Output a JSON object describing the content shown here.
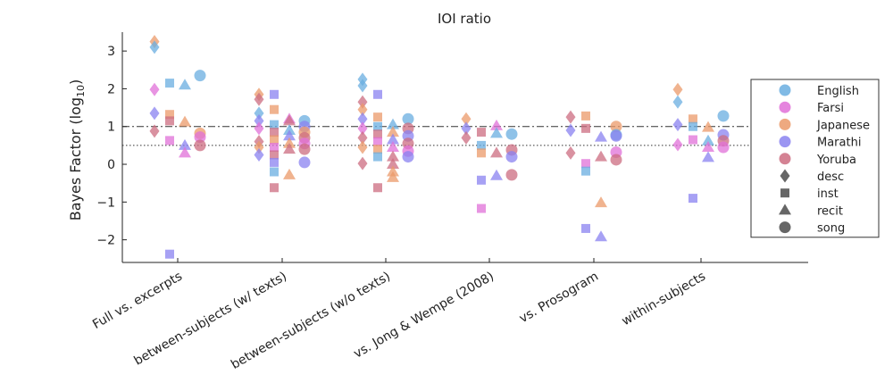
{
  "chart_data": {
    "type": "scatter",
    "title": "IOI ratio",
    "ylabel": "Bayes Factor (log",
    "ylabel_sub": "10",
    "ylabel_close": ")",
    "ylim": [
      -2.6,
      3.5
    ],
    "yticks": [
      -2,
      -1,
      0,
      1,
      2,
      3
    ],
    "ytick_labels": [
      "−2",
      "−1",
      "0",
      "1",
      "2",
      "3"
    ],
    "categories": [
      "Full vs. excerpts",
      "between-subjects (w/ texts)",
      "between-subjects (w/o texts)",
      "vs. Jong & Wempe (2008)",
      "vs. Prosogram",
      "within-subjects"
    ],
    "reference_lines": [
      {
        "y": 1.0,
        "style": "dashdot"
      },
      {
        "y": 0.5,
        "style": "dotted"
      }
    ],
    "colors": {
      "English": "#6aaee0",
      "Farsi": "#e070d8",
      "Japanese": "#eb9a6a",
      "Marathi": "#8a82f0",
      "Yoruba": "#cc6c80"
    },
    "legend_position": "right",
    "legend": [
      {
        "label": "English",
        "kind": "color",
        "color": "#6aaee0"
      },
      {
        "label": "Farsi",
        "kind": "color",
        "color": "#e070d8"
      },
      {
        "label": "Japanese",
        "kind": "color",
        "color": "#eb9a6a"
      },
      {
        "label": "Marathi",
        "kind": "color",
        "color": "#8a82f0"
      },
      {
        "label": "Yoruba",
        "kind": "color",
        "color": "#cc6c80"
      },
      {
        "label": "desc",
        "kind": "marker",
        "marker": "diamond"
      },
      {
        "label": "inst",
        "kind": "marker",
        "marker": "square"
      },
      {
        "label": "recit",
        "kind": "marker",
        "marker": "triangle"
      },
      {
        "label": "song",
        "kind": "marker",
        "marker": "circle"
      }
    ],
    "points": [
      {
        "cat": 0,
        "m": "diamond",
        "lang": "Japanese",
        "y": 3.25
      },
      {
        "cat": 0,
        "m": "diamond",
        "lang": "English",
        "y": 3.1
      },
      {
        "cat": 0,
        "m": "diamond",
        "lang": "Farsi",
        "y": 1.98
      },
      {
        "cat": 0,
        "m": "diamond",
        "lang": "Marathi",
        "y": 1.35
      },
      {
        "cat": 0,
        "m": "diamond",
        "lang": "Yoruba",
        "y": 0.88
      },
      {
        "cat": 0,
        "m": "square",
        "lang": "English",
        "y": 2.15
      },
      {
        "cat": 0,
        "m": "square",
        "lang": "Japanese",
        "y": 1.32
      },
      {
        "cat": 0,
        "m": "square",
        "lang": "Yoruba",
        "y": 1.15
      },
      {
        "cat": 0,
        "m": "square",
        "lang": "Farsi",
        "y": 0.63
      },
      {
        "cat": 0,
        "m": "square",
        "lang": "Marathi",
        "y": -2.38
      },
      {
        "cat": 0,
        "m": "triangle",
        "lang": "English",
        "y": 2.1
      },
      {
        "cat": 0,
        "m": "triangle",
        "lang": "Japanese",
        "y": 1.12
      },
      {
        "cat": 0,
        "m": "triangle",
        "lang": "Marathi",
        "y": 0.5
      },
      {
        "cat": 0,
        "m": "triangle",
        "lang": "Farsi",
        "y": 0.3
      },
      {
        "cat": 0,
        "m": "circle",
        "lang": "English",
        "y": 2.35
      },
      {
        "cat": 0,
        "m": "circle",
        "lang": "Japanese",
        "y": 0.82
      },
      {
        "cat": 0,
        "m": "circle",
        "lang": "Farsi",
        "y": 0.72
      },
      {
        "cat": 0,
        "m": "circle",
        "lang": "Yoruba",
        "y": 0.5
      },
      {
        "cat": 1,
        "m": "diamond",
        "lang": "Japanese",
        "y": 1.85
      },
      {
        "cat": 1,
        "m": "diamond",
        "lang": "Yoruba",
        "y": 1.72
      },
      {
        "cat": 1,
        "m": "diamond",
        "lang": "English",
        "y": 1.35
      },
      {
        "cat": 1,
        "m": "diamond",
        "lang": "Marathi",
        "y": 1.15
      },
      {
        "cat": 1,
        "m": "diamond",
        "lang": "Farsi",
        "y": 0.95
      },
      {
        "cat": 1,
        "m": "diamond",
        "lang": "Yoruba",
        "y": 0.6
      },
      {
        "cat": 1,
        "m": "diamond",
        "lang": "Japanese",
        "y": 0.45
      },
      {
        "cat": 1,
        "m": "diamond",
        "lang": "Marathi",
        "y": 0.25
      },
      {
        "cat": 1,
        "m": "square",
        "lang": "Marathi",
        "y": 1.85
      },
      {
        "cat": 1,
        "m": "square",
        "lang": "Japanese",
        "y": 1.45
      },
      {
        "cat": 1,
        "m": "square",
        "lang": "English",
        "y": 1.05
      },
      {
        "cat": 1,
        "m": "square",
        "lang": "Yoruba",
        "y": 0.85
      },
      {
        "cat": 1,
        "m": "square",
        "lang": "Japanese",
        "y": 0.65
      },
      {
        "cat": 1,
        "m": "square",
        "lang": "Farsi",
        "y": 0.45
      },
      {
        "cat": 1,
        "m": "square",
        "lang": "Yoruba",
        "y": 0.25
      },
      {
        "cat": 1,
        "m": "square",
        "lang": "Marathi",
        "y": 0.05
      },
      {
        "cat": 1,
        "m": "square",
        "lang": "English",
        "y": -0.2
      },
      {
        "cat": 1,
        "m": "square",
        "lang": "Yoruba",
        "y": -0.62
      },
      {
        "cat": 1,
        "m": "triangle",
        "lang": "Farsi",
        "y": 1.2
      },
      {
        "cat": 1,
        "m": "triangle",
        "lang": "Yoruba",
        "y": 1.15
      },
      {
        "cat": 1,
        "m": "triangle",
        "lang": "English",
        "y": 0.9
      },
      {
        "cat": 1,
        "m": "triangle",
        "lang": "Marathi",
        "y": 0.75
      },
      {
        "cat": 1,
        "m": "triangle",
        "lang": "Japanese",
        "y": 0.55
      },
      {
        "cat": 1,
        "m": "triangle",
        "lang": "Yoruba",
        "y": 0.4
      },
      {
        "cat": 1,
        "m": "triangle",
        "lang": "Japanese",
        "y": -0.28
      },
      {
        "cat": 1,
        "m": "circle",
        "lang": "English",
        "y": 1.15
      },
      {
        "cat": 1,
        "m": "circle",
        "lang": "Marathi",
        "y": 1.0
      },
      {
        "cat": 1,
        "m": "circle",
        "lang": "Japanese",
        "y": 0.85
      },
      {
        "cat": 1,
        "m": "circle",
        "lang": "Yoruba",
        "y": 0.7
      },
      {
        "cat": 1,
        "m": "circle",
        "lang": "Farsi",
        "y": 0.55
      },
      {
        "cat": 1,
        "m": "circle",
        "lang": "Yoruba",
        "y": 0.4
      },
      {
        "cat": 1,
        "m": "circle",
        "lang": "Marathi",
        "y": 0.05
      },
      {
        "cat": 2,
        "m": "diamond",
        "lang": "English",
        "y": 2.25
      },
      {
        "cat": 2,
        "m": "diamond",
        "lang": "English",
        "y": 2.08
      },
      {
        "cat": 2,
        "m": "diamond",
        "lang": "Yoruba",
        "y": 1.65
      },
      {
        "cat": 2,
        "m": "diamond",
        "lang": "Japanese",
        "y": 1.45
      },
      {
        "cat": 2,
        "m": "diamond",
        "lang": "Marathi",
        "y": 1.2
      },
      {
        "cat": 2,
        "m": "diamond",
        "lang": "Farsi",
        "y": 0.95
      },
      {
        "cat": 2,
        "m": "diamond",
        "lang": "Yoruba",
        "y": 0.7
      },
      {
        "cat": 2,
        "m": "diamond",
        "lang": "Japanese",
        "y": 0.45
      },
      {
        "cat": 2,
        "m": "diamond",
        "lang": "Yoruba",
        "y": 0.02
      },
      {
        "cat": 2,
        "m": "square",
        "lang": "Marathi",
        "y": 1.85
      },
      {
        "cat": 2,
        "m": "square",
        "lang": "Japanese",
        "y": 1.25
      },
      {
        "cat": 2,
        "m": "square",
        "lang": "English",
        "y": 1.0
      },
      {
        "cat": 2,
        "m": "square",
        "lang": "Yoruba",
        "y": 0.8
      },
      {
        "cat": 2,
        "m": "square",
        "lang": "Farsi",
        "y": 0.6
      },
      {
        "cat": 2,
        "m": "square",
        "lang": "Japanese",
        "y": 0.4
      },
      {
        "cat": 2,
        "m": "square",
        "lang": "English",
        "y": 0.2
      },
      {
        "cat": 2,
        "m": "square",
        "lang": "Yoruba",
        "y": -0.62
      },
      {
        "cat": 2,
        "m": "triangle",
        "lang": "English",
        "y": 1.05
      },
      {
        "cat": 2,
        "m": "triangle",
        "lang": "Japanese",
        "y": 0.85
      },
      {
        "cat": 2,
        "m": "triangle",
        "lang": "Marathi",
        "y": 0.65
      },
      {
        "cat": 2,
        "m": "triangle",
        "lang": "Farsi",
        "y": 0.45
      },
      {
        "cat": 2,
        "m": "triangle",
        "lang": "Yoruba",
        "y": 0.2
      },
      {
        "cat": 2,
        "m": "triangle",
        "lang": "Yoruba",
        "y": 0.0
      },
      {
        "cat": 2,
        "m": "triangle",
        "lang": "Japanese",
        "y": -0.2
      },
      {
        "cat": 2,
        "m": "triangle",
        "lang": "Japanese",
        "y": -0.35
      },
      {
        "cat": 2,
        "m": "circle",
        "lang": "English",
        "y": 1.2
      },
      {
        "cat": 2,
        "m": "circle",
        "lang": "Yoruba",
        "y": 0.95
      },
      {
        "cat": 2,
        "m": "circle",
        "lang": "Marathi",
        "y": 0.75
      },
      {
        "cat": 2,
        "m": "circle",
        "lang": "Yoruba",
        "y": 0.55
      },
      {
        "cat": 2,
        "m": "circle",
        "lang": "Farsi",
        "y": 0.35
      },
      {
        "cat": 2,
        "m": "circle",
        "lang": "Marathi",
        "y": 0.2
      },
      {
        "cat": 3,
        "m": "diamond",
        "lang": "Japanese",
        "y": 1.2
      },
      {
        "cat": 3,
        "m": "diamond",
        "lang": "Marathi",
        "y": 0.95
      },
      {
        "cat": 3,
        "m": "diamond",
        "lang": "Yoruba",
        "y": 0.7
      },
      {
        "cat": 3,
        "m": "square",
        "lang": "Yoruba",
        "y": 0.85
      },
      {
        "cat": 3,
        "m": "square",
        "lang": "English",
        "y": 0.5
      },
      {
        "cat": 3,
        "m": "square",
        "lang": "Japanese",
        "y": 0.3
      },
      {
        "cat": 3,
        "m": "square",
        "lang": "Marathi",
        "y": -0.42
      },
      {
        "cat": 3,
        "m": "square",
        "lang": "Farsi",
        "y": -1.17
      },
      {
        "cat": 3,
        "m": "triangle",
        "lang": "Farsi",
        "y": 1.02
      },
      {
        "cat": 3,
        "m": "triangle",
        "lang": "English",
        "y": 0.82
      },
      {
        "cat": 3,
        "m": "triangle",
        "lang": "Yoruba",
        "y": 0.3
      },
      {
        "cat": 3,
        "m": "triangle",
        "lang": "Marathi",
        "y": -0.3
      },
      {
        "cat": 3,
        "m": "circle",
        "lang": "English",
        "y": 0.8
      },
      {
        "cat": 3,
        "m": "circle",
        "lang": "Yoruba",
        "y": 0.38
      },
      {
        "cat": 3,
        "m": "circle",
        "lang": "Marathi",
        "y": 0.2
      },
      {
        "cat": 3,
        "m": "circle",
        "lang": "Yoruba",
        "y": -0.28
      },
      {
        "cat": 4,
        "m": "diamond",
        "lang": "Yoruba",
        "y": 1.25
      },
      {
        "cat": 4,
        "m": "diamond",
        "lang": "Marathi",
        "y": 0.9
      },
      {
        "cat": 4,
        "m": "diamond",
        "lang": "Yoruba",
        "y": 0.3
      },
      {
        "cat": 4,
        "m": "square",
        "lang": "Japanese",
        "y": 1.28
      },
      {
        "cat": 4,
        "m": "square",
        "lang": "Yoruba",
        "y": 0.95
      },
      {
        "cat": 4,
        "m": "square",
        "lang": "Farsi",
        "y": 0.02
      },
      {
        "cat": 4,
        "m": "square",
        "lang": "English",
        "y": -0.18
      },
      {
        "cat": 4,
        "m": "square",
        "lang": "Marathi",
        "y": -1.7
      },
      {
        "cat": 4,
        "m": "triangle",
        "lang": "Marathi",
        "y": 0.72
      },
      {
        "cat": 4,
        "m": "triangle",
        "lang": "Yoruba",
        "y": 0.2
      },
      {
        "cat": 4,
        "m": "triangle",
        "lang": "Japanese",
        "y": -1.02
      },
      {
        "cat": 4,
        "m": "triangle",
        "lang": "Marathi",
        "y": -1.92
      },
      {
        "cat": 4,
        "m": "circle",
        "lang": "Japanese",
        "y": 1.0
      },
      {
        "cat": 4,
        "m": "circle",
        "lang": "English",
        "y": 0.78
      },
      {
        "cat": 4,
        "m": "circle",
        "lang": "Marathi",
        "y": 0.75
      },
      {
        "cat": 4,
        "m": "circle",
        "lang": "Farsi",
        "y": 0.32
      },
      {
        "cat": 4,
        "m": "circle",
        "lang": "Yoruba",
        "y": 0.12
      },
      {
        "cat": 5,
        "m": "diamond",
        "lang": "Japanese",
        "y": 1.98
      },
      {
        "cat": 5,
        "m": "diamond",
        "lang": "English",
        "y": 1.65
      },
      {
        "cat": 5,
        "m": "diamond",
        "lang": "Marathi",
        "y": 1.05
      },
      {
        "cat": 5,
        "m": "diamond",
        "lang": "Farsi",
        "y": 0.52
      },
      {
        "cat": 5,
        "m": "square",
        "lang": "Japanese",
        "y": 1.2
      },
      {
        "cat": 5,
        "m": "square",
        "lang": "English",
        "y": 1.0
      },
      {
        "cat": 5,
        "m": "square",
        "lang": "Farsi",
        "y": 0.65
      },
      {
        "cat": 5,
        "m": "square",
        "lang": "Marathi",
        "y": -0.9
      },
      {
        "cat": 5,
        "m": "triangle",
        "lang": "Japanese",
        "y": 0.98
      },
      {
        "cat": 5,
        "m": "triangle",
        "lang": "English",
        "y": 0.62
      },
      {
        "cat": 5,
        "m": "triangle",
        "lang": "Farsi",
        "y": 0.45
      },
      {
        "cat": 5,
        "m": "triangle",
        "lang": "Marathi",
        "y": 0.18
      },
      {
        "cat": 5,
        "m": "circle",
        "lang": "English",
        "y": 1.28
      },
      {
        "cat": 5,
        "m": "circle",
        "lang": "Marathi",
        "y": 0.78
      },
      {
        "cat": 5,
        "m": "circle",
        "lang": "Yoruba",
        "y": 0.62
      },
      {
        "cat": 5,
        "m": "circle",
        "lang": "Farsi",
        "y": 0.45
      }
    ]
  }
}
